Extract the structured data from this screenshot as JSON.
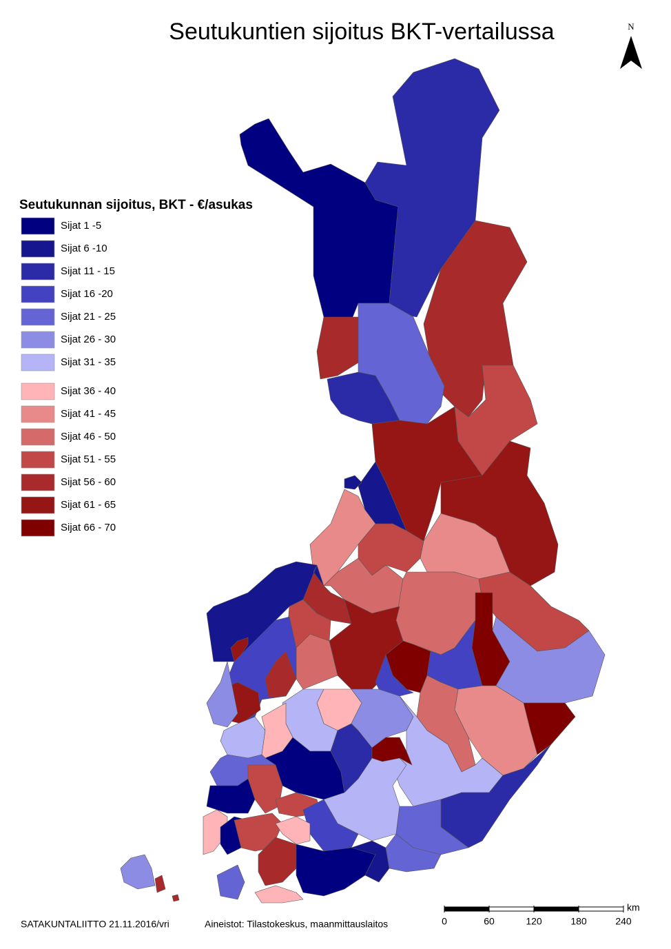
{
  "title": "Seutukuntien sijoitus BKT-vertailussa",
  "north_label": "N",
  "legend": {
    "title": "Seutukunnan sijoitus, BKT - €/asukas",
    "items": [
      {
        "label": "Sijat 1 -5",
        "color": "#000080"
      },
      {
        "label": "Sijat 6 -10",
        "color": "#16168e"
      },
      {
        "label": "Sijat 11 - 15",
        "color": "#2b2ba8"
      },
      {
        "label": "Sijat 16 -20",
        "color": "#4242c2"
      },
      {
        "label": "Sijat 21 - 25",
        "color": "#6464d4"
      },
      {
        "label": "Sijat 26 - 30",
        "color": "#8c8ce4"
      },
      {
        "label": "Sijat 31 - 35",
        "color": "#b4b4f6"
      },
      {
        "label": "Sijat 36 - 40",
        "color": "#ffb4b8"
      },
      {
        "label": "Sijat 41 - 45",
        "color": "#e88a8a"
      },
      {
        "label": "Sijat 46 - 50",
        "color": "#d46a6a"
      },
      {
        "label": "Sijat 51 - 55",
        "color": "#c24848"
      },
      {
        "label": "Sijat 56 - 60",
        "color": "#a82a2a"
      },
      {
        "label": "Sijat 61 - 65",
        "color": "#961616"
      },
      {
        "label": "Sijat 66 - 70",
        "color": "#800000"
      }
    ]
  },
  "scale_bar": {
    "unit": "km",
    "ticks": [
      0,
      60,
      120,
      180,
      240
    ]
  },
  "footer": {
    "credit": "SATAKUNTALIITTO 21.11.2016/vri",
    "sources": "Aineistot: Tilastokeskus, maanmittauslaitos"
  }
}
